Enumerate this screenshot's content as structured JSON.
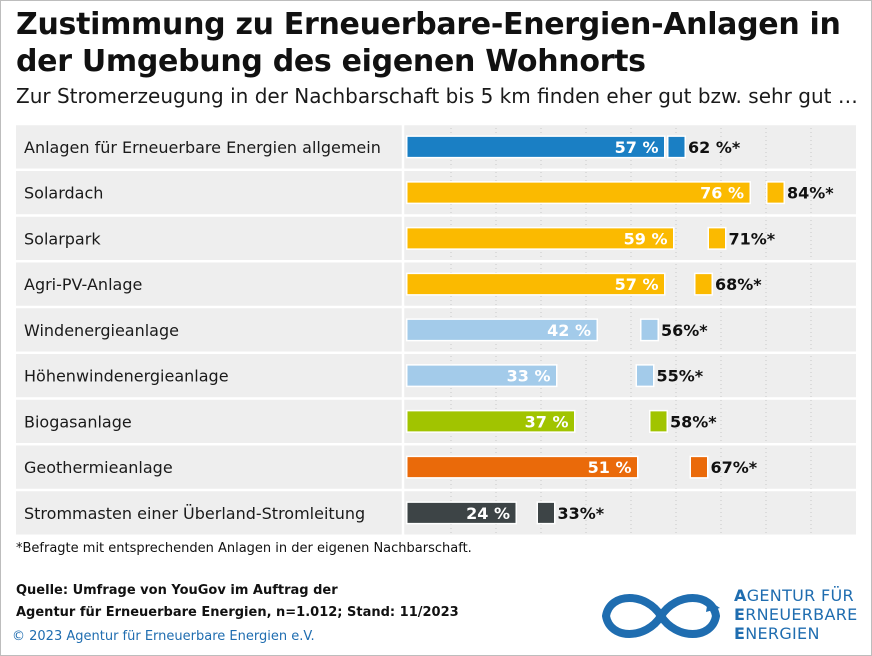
{
  "title": "Zustimmung zu Erneuerbare-Energien-Anlagen in der Umgebung des eigenen Wohnorts",
  "subtitle": "Zur Stromerzeugung in der Nachbarschaft bis 5 km finden eher gut bzw. sehr gut …",
  "chart_data": {
    "type": "bar",
    "orientation": "horizontal",
    "xlim": [
      0,
      100
    ],
    "grid": true,
    "categories": [
      "Anlagen für Erneuerbare Energien allgemein",
      "Solardach",
      "Solarpark",
      "Agri-PV-Anlage",
      "Windenergieanlage",
      "Höhenwindenergieanlage",
      "Biogasanlage",
      "Geothermieanlage",
      "Strommasten einer Überland-Stromleitung"
    ],
    "series": [
      {
        "values": [
          57,
          76,
          59,
          57,
          42,
          33,
          37,
          51,
          24
        ],
        "labels": [
          "57 %",
          "76 %",
          "59 %",
          "57 %",
          "42 %",
          "33 %",
          "37 %",
          "51 %",
          "24 %"
        ]
      },
      {
        "values": [
          62,
          84,
          71,
          68,
          56,
          55,
          58,
          67,
          33
        ],
        "labels": [
          "62 %*",
          "84%*",
          "71%*",
          "68%*",
          "56%*",
          "55%*",
          "58%*",
          "67%*",
          "33%*"
        ]
      }
    ],
    "colors": [
      "#1a7fc4",
      "#fbba00",
      "#fbba00",
      "#fbba00",
      "#a3cbea",
      "#a3cbea",
      "#a1c400",
      "#ea6a0a",
      "#3d4446"
    ]
  },
  "footnote": "*Befragte mit entsprechenden Anlagen in der eigenen Nachbarschaft.",
  "source": {
    "line1": "Quelle: Umfrage von YouGov im Auftrag der",
    "line2": "Agentur für Erneuerbare Energien, n=1.012; Stand: 11/2023"
  },
  "copyright": "© 2023 Agentur für Erneuerbare Energien e.V.",
  "logo": {
    "icon": "infinity-logo-icon",
    "line1_initial": "A",
    "line1_rest": "GENTUR FÜR",
    "line2_initial": "E",
    "line2_rest": "RNEUERBARE",
    "line3_initial": "E",
    "line3_rest": "NERGIEN",
    "color": "#1f6db0"
  }
}
